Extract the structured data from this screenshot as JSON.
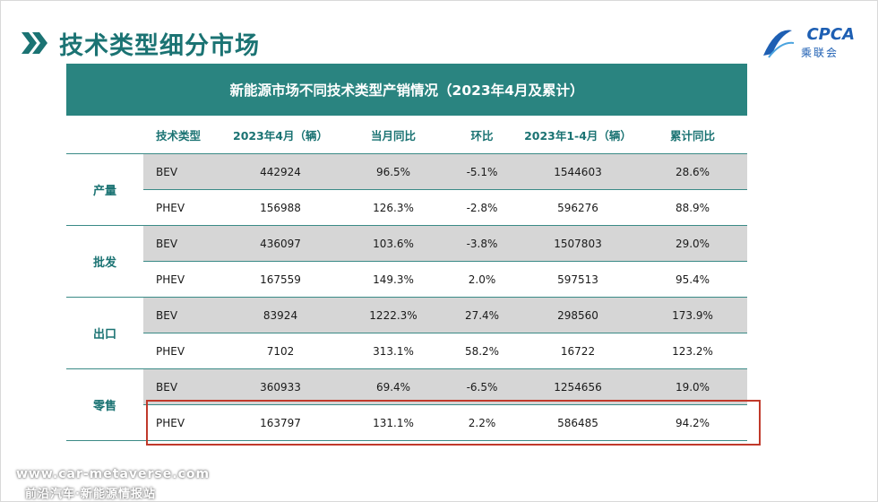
{
  "header": {
    "title": "技术类型细分市场"
  },
  "logo": {
    "main": "CPCA",
    "sub": "乘联会"
  },
  "table": {
    "caption": "新能源市场不同技术类型产销情况（2023年4月及累计）",
    "columns": [
      "技术类型",
      "2023年4月（辆）",
      "当月同比",
      "环比",
      "2023年1-4月（辆）",
      "累计同比"
    ],
    "groups": [
      {
        "label": "产量",
        "rows": [
          [
            "BEV",
            "442924",
            "96.5%",
            "-5.1%",
            "1544603",
            "28.6%"
          ],
          [
            "PHEV",
            "156988",
            "126.3%",
            "-2.8%",
            "596276",
            "88.9%"
          ]
        ]
      },
      {
        "label": "批发",
        "rows": [
          [
            "BEV",
            "436097",
            "103.6%",
            "-3.8%",
            "1507803",
            "29.0%"
          ],
          [
            "PHEV",
            "167559",
            "149.3%",
            "2.0%",
            "597513",
            "95.4%"
          ]
        ]
      },
      {
        "label": "出口",
        "rows": [
          [
            "BEV",
            "83924",
            "1222.3%",
            "27.4%",
            "298560",
            "173.9%"
          ],
          [
            "PHEV",
            "7102",
            "313.1%",
            "58.2%",
            "16722",
            "123.2%"
          ]
        ]
      },
      {
        "label": "零售",
        "rows": [
          [
            "BEV",
            "360933",
            "69.4%",
            "-6.5%",
            "1254656",
            "19.0%"
          ],
          [
            "PHEV",
            "163797",
            "131.1%",
            "2.2%",
            "586485",
            "94.2%"
          ]
        ]
      }
    ]
  },
  "watermark": {
    "site": "www.car-metaverse.com",
    "sub": "前沿汽车·新能源情报站"
  },
  "colors": {
    "teal": "#2a8480",
    "title": "#1b7373",
    "highlight": "#c0392b",
    "shade": "#d6d6d6"
  }
}
